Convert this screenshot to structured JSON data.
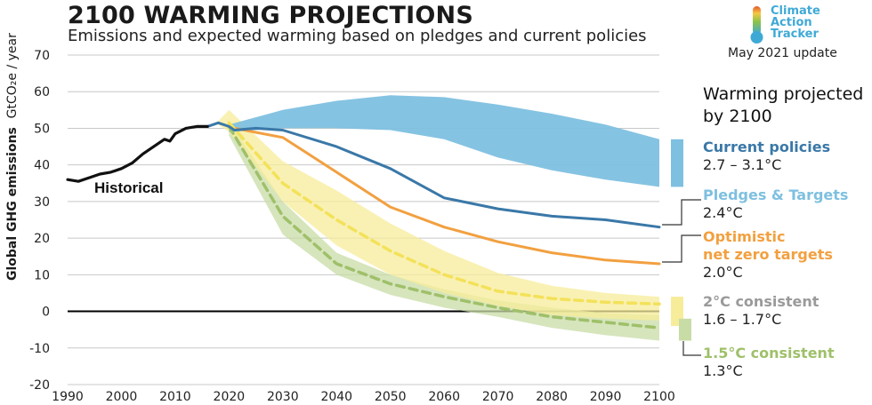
{
  "header": {
    "title": "2100 WARMING PROJECTIONS",
    "subtitle": "Emissions and expected warming based on pledges and current policies",
    "update": "May 2021 update",
    "logo_lines": [
      "Climate",
      "Action",
      "Tracker"
    ]
  },
  "legend": {
    "heading_line1": "Warming projected",
    "heading_line2": "by 2100"
  },
  "colors": {
    "historical": "#111111",
    "current": "#3a78a8",
    "current_band": "#7ec0e0",
    "pledges": "#7ec0e0",
    "optimistic": "#f2a040",
    "c2": "#f3e15a",
    "c2_band": "#f7ec9a",
    "c15": "#9fc06a",
    "c15_band": "#c8dca6",
    "label_2c": "#9a9a9a",
    "label_15c": "#9fc06a"
  },
  "chart_data": {
    "type": "line",
    "title": "2100 WARMING PROJECTIONS",
    "ylabel": "Global GHG emissions",
    "yunit": "GtCO₂e / year",
    "xlim": [
      1990,
      2100
    ],
    "ylim": [
      -20,
      70
    ],
    "xticks": [
      1990,
      2000,
      2010,
      2020,
      2030,
      2040,
      2050,
      2060,
      2070,
      2080,
      2090,
      2100
    ],
    "yticks": [
      70,
      60,
      50,
      40,
      30,
      20,
      10,
      0,
      -10,
      -20
    ],
    "grid": true,
    "annotations": [
      "Historical"
    ],
    "series": [
      {
        "name": "Historical",
        "key": "historical",
        "x": [
          1990,
          1992,
          1994,
          1996,
          1998,
          2000,
          2002,
          2004,
          2006,
          2008,
          2009,
          2010,
          2012,
          2014,
          2016
        ],
        "y": [
          36,
          35.5,
          36.5,
          37.5,
          38,
          39,
          40.5,
          43,
          45,
          47,
          46.5,
          48.5,
          50,
          50.5,
          50.5
        ]
      },
      {
        "name": "Current policies",
        "value": "2.7 – 3.1°C",
        "key": "current",
        "x": [
          2016,
          2018,
          2020,
          2021,
          2025,
          2030,
          2040,
          2050,
          2060,
          2070,
          2080,
          2090,
          2100
        ],
        "y": [
          50.5,
          51.5,
          50.5,
          49.5,
          50,
          49.5,
          45,
          39,
          31,
          28,
          26,
          25,
          23
        ],
        "band": {
          "x": [
            2020,
            2030,
            2040,
            2050,
            2060,
            2070,
            2080,
            2090,
            2100
          ],
          "low": [
            49,
            50,
            50,
            49.5,
            47,
            42,
            38.5,
            36,
            34
          ],
          "high": [
            51,
            55,
            57.5,
            59,
            58.5,
            56.5,
            54,
            51,
            47
          ]
        }
      },
      {
        "name": "Pledges & Targets",
        "value": "2.4°C",
        "key": "pledges"
      },
      {
        "name": "Optimistic net zero targets",
        "name_lines": [
          "Optimistic",
          "net zero targets"
        ],
        "value": "2.0°C",
        "key": "optimistic",
        "x": [
          2021,
          2030,
          2040,
          2050,
          2060,
          2070,
          2080,
          2090,
          2100
        ],
        "y": [
          50,
          47.5,
          38,
          28.5,
          23,
          19,
          16,
          14,
          13
        ]
      },
      {
        "name": "2°C consistent",
        "value": "1.6 – 1.7°C",
        "key": "c2",
        "x": [
          2020,
          2030,
          2040,
          2050,
          2060,
          2070,
          2080,
          2090,
          2100
        ],
        "y": [
          51.5,
          35,
          25,
          16.5,
          10,
          5.5,
          3.5,
          2.5,
          2
        ],
        "band": {
          "x": [
            2018,
            2020,
            2030,
            2040,
            2050,
            2060,
            2070,
            2080,
            2090,
            2100
          ],
          "low": [
            51,
            49,
            30,
            18,
            10,
            5,
            1.5,
            -1,
            -2,
            -2.5
          ],
          "high": [
            52,
            55,
            41,
            33,
            24,
            16.5,
            10.5,
            7,
            5,
            4
          ]
        }
      },
      {
        "name": "1.5°C consistent",
        "value": "1.3°C",
        "key": "c15",
        "x": [
          2020,
          2030,
          2040,
          2050,
          2060,
          2070,
          2080,
          2090,
          2100
        ],
        "y": [
          50.5,
          26,
          13,
          7.5,
          4,
          1,
          -1.5,
          -3,
          -4.5
        ],
        "band": {
          "x": [
            2020,
            2030,
            2040,
            2050,
            2060,
            2070,
            2080,
            2090,
            2100
          ],
          "low": [
            48,
            21,
            10,
            4.5,
            1,
            -1.5,
            -4.5,
            -6.5,
            -8
          ],
          "high": [
            52,
            30,
            16,
            10,
            6,
            3,
            1,
            -0.5,
            -1
          ]
        }
      }
    ]
  }
}
